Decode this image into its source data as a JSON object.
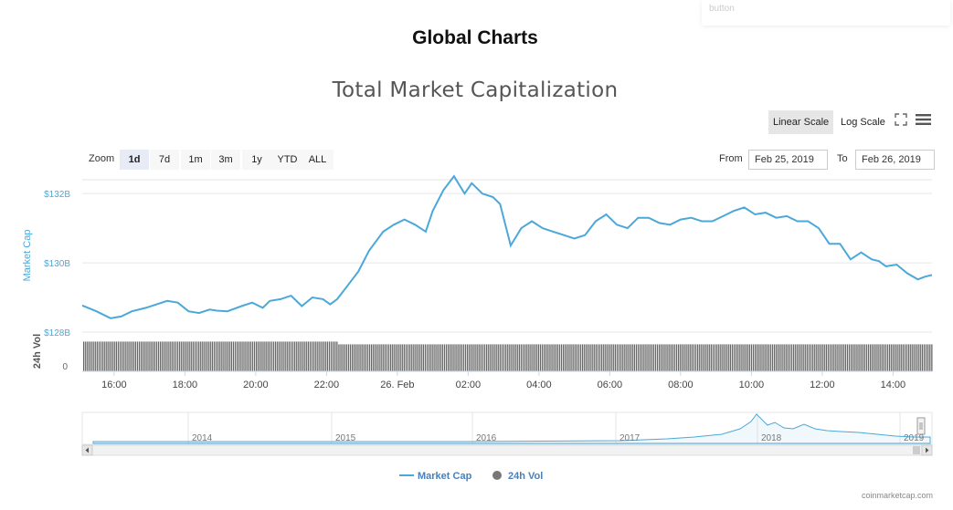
{
  "page_title": "Global Charts",
  "tooltip_ghost": "button",
  "toolbar": {
    "linear_scale": "Linear Scale",
    "log_scale": "Log Scale",
    "active_scale": "linear",
    "icons": [
      "fullscreen-icon",
      "menu-icon"
    ]
  },
  "zoom": {
    "label": "Zoom",
    "options": [
      "1d",
      "7d",
      "1m",
      "3m",
      "1y",
      "YTD",
      "ALL"
    ],
    "active": "1d"
  },
  "range": {
    "from_label": "From",
    "from_value": "Feb 25, 2019",
    "to_label": "To",
    "to_value": "Feb 26, 2019"
  },
  "credit": "coinmarketcap.com",
  "colors": {
    "line": "#4ba8d8",
    "volume": "#777777",
    "axis_label": "#4ba8d8"
  },
  "chart_data": {
    "type": "line",
    "title": "Total Market Capitalization",
    "ylabel": "Market Cap",
    "ylabel2": "24h Vol",
    "y_ticks": [
      "$128B",
      "$130B",
      "$132B"
    ],
    "y_tick_values": [
      128,
      130,
      132
    ],
    "ylim": [
      128,
      132.4
    ],
    "y2_ticks": [
      "0"
    ],
    "x_tick_labels": [
      "16:00",
      "18:00",
      "20:00",
      "22:00",
      "26. Feb",
      "02:00",
      "04:00",
      "06:00",
      "08:00",
      "10:00",
      "12:00",
      "14:00"
    ],
    "x_tick_hours": [
      16,
      18,
      20,
      22,
      24,
      26,
      28,
      30,
      32,
      34,
      36,
      38
    ],
    "xlim_hours": [
      15.1,
      39.1
    ],
    "series": [
      {
        "name": "Market Cap",
        "x_hours": [
          15.1,
          15.5,
          15.9,
          16.2,
          16.5,
          16.9,
          17.2,
          17.5,
          17.8,
          18.1,
          18.4,
          18.7,
          18.9,
          19.2,
          19.6,
          19.9,
          20.2,
          20.4,
          20.7,
          21.0,
          21.3,
          21.6,
          21.9,
          22.1,
          22.3,
          22.6,
          22.9,
          23.2,
          23.6,
          23.9,
          24.2,
          24.5,
          24.8,
          25.0,
          25.3,
          25.6,
          25.9,
          26.1,
          26.4,
          26.7,
          26.9,
          27.2,
          27.5,
          27.8,
          28.1,
          28.4,
          28.7,
          29.0,
          29.3,
          29.6,
          29.9,
          30.2,
          30.5,
          30.8,
          31.1,
          31.4,
          31.7,
          32.0,
          32.3,
          32.6,
          32.9,
          33.2,
          33.5,
          33.8,
          34.1,
          34.4,
          34.7,
          35.0,
          35.3,
          35.6,
          35.9,
          36.2,
          36.5,
          36.8,
          37.1,
          37.4,
          37.6,
          37.8,
          38.1,
          38.4,
          38.7,
          38.9,
          39.1
        ],
        "values": [
          128.77,
          128.6,
          128.4,
          128.45,
          128.6,
          128.7,
          128.8,
          128.9,
          128.85,
          128.6,
          128.55,
          128.65,
          128.62,
          128.6,
          128.75,
          128.85,
          128.7,
          128.9,
          128.95,
          129.05,
          128.75,
          129.0,
          128.95,
          128.8,
          128.95,
          129.35,
          129.75,
          130.35,
          130.9,
          131.1,
          131.25,
          131.1,
          130.9,
          131.5,
          132.1,
          132.5,
          132.0,
          132.3,
          132.0,
          131.9,
          131.7,
          130.5,
          131.0,
          131.2,
          131.0,
          130.9,
          130.8,
          130.7,
          130.8,
          131.2,
          131.4,
          131.1,
          131.0,
          131.3,
          131.3,
          131.15,
          131.1,
          131.25,
          131.3,
          131.2,
          131.2,
          131.35,
          131.5,
          131.6,
          131.4,
          131.45,
          131.3,
          131.35,
          131.2,
          131.2,
          131.0,
          130.55,
          130.55,
          130.1,
          130.3,
          130.1,
          130.05,
          129.9,
          129.95,
          129.7,
          129.52,
          129.6,
          129.65
        ]
      },
      {
        "name": "24h Vol",
        "level": 0.88,
        "level_late": 0.8
      }
    ],
    "navigator": {
      "year_labels": [
        "2014",
        "2015",
        "2016",
        "2017",
        "2018",
        "2019"
      ]
    },
    "legend": {
      "position": "bottom-center",
      "items": [
        "Market Cap",
        "24h Vol"
      ]
    }
  }
}
